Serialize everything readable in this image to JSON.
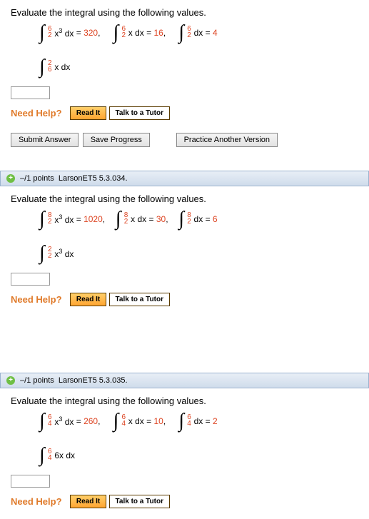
{
  "q1": {
    "prompt": "Evaluate the integral using the following values.",
    "given": [
      {
        "lower": "2",
        "upper": "6",
        "integrand_html": "x<sup>3</sup> dx",
        "value": "320"
      },
      {
        "lower": "2",
        "upper": "6",
        "integrand_html": "x dx",
        "value": "16"
      },
      {
        "lower": "2",
        "upper": "6",
        "integrand_html": "dx",
        "value": "4"
      }
    ],
    "target": {
      "lower": "6",
      "upper": "2",
      "integrand_html": "x dx"
    },
    "need_help_label": "Need Help?",
    "read_it": "Read It",
    "tutor": "Talk to a Tutor",
    "submit": "Submit Answer",
    "save": "Save Progress",
    "practice": "Practice Another Version"
  },
  "h2": {
    "points": "–/1 points",
    "ref": "LarsonET5 5.3.034."
  },
  "q2": {
    "prompt": "Evaluate the integral using the following values.",
    "given": [
      {
        "lower": "2",
        "upper": "8",
        "integrand_html": "x<sup>3</sup> dx",
        "value": "1020"
      },
      {
        "lower": "2",
        "upper": "8",
        "integrand_html": "x dx",
        "value": "30"
      },
      {
        "lower": "2",
        "upper": "8",
        "integrand_html": "dx",
        "value": "6"
      }
    ],
    "target": {
      "lower": "2",
      "upper": "2",
      "integrand_html": "x<sup>3</sup> dx"
    },
    "need_help_label": "Need Help?",
    "read_it": "Read It",
    "tutor": "Talk to a Tutor"
  },
  "h3": {
    "points": "–/1 points",
    "ref": "LarsonET5 5.3.035."
  },
  "q3": {
    "prompt": "Evaluate the integral using the following values.",
    "given": [
      {
        "lower": "4",
        "upper": "6",
        "integrand_html": "x<sup>3</sup> dx",
        "value": "260"
      },
      {
        "lower": "4",
        "upper": "6",
        "integrand_html": "x dx",
        "value": "10"
      },
      {
        "lower": "4",
        "upper": "6",
        "integrand_html": "dx",
        "value": "2"
      }
    ],
    "target": {
      "lower": "4",
      "upper": "6",
      "integrand_html": "6x dx"
    },
    "need_help_label": "Need Help?",
    "read_it": "Read It",
    "tutor": "Talk to a Tutor"
  },
  "style": {
    "accent": "#d42",
    "orange": "#e07b2b"
  }
}
